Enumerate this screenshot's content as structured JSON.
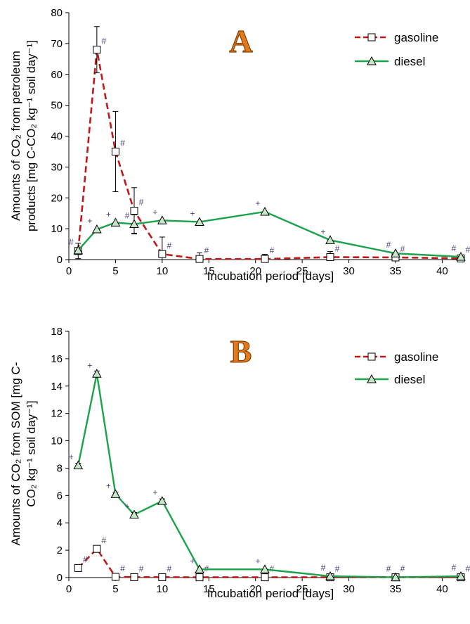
{
  "colors": {
    "gasoline": "#c01818",
    "diesel": "#1aa34a",
    "letter_fill": "#e07a1c",
    "letter_stroke": "#8a3f00",
    "marks": "#4a3f7a"
  },
  "chart_data": [
    {
      "type": "line",
      "panel": "A",
      "xlabel": "Incubation period [days]",
      "ylabel_lines": [
        "Amounts of CO₂ from petroleum",
        "products [mg C-CO₂ kg⁻¹ soil day⁻¹]"
      ],
      "xlim": [
        0,
        42
      ],
      "ylim": [
        0,
        80
      ],
      "xticks": [
        0,
        5,
        10,
        15,
        20,
        25,
        30,
        35,
        40
      ],
      "yticks": [
        0,
        10,
        20,
        30,
        40,
        50,
        60,
        70,
        80
      ],
      "legend_position": "top-right",
      "series": [
        {
          "name": "gasoline",
          "style": "dashed",
          "marker": "square",
          "points": [
            {
              "x": 1,
              "y": 2.8,
              "err": 2.5,
              "mark": ""
            },
            {
              "x": 3,
              "y": 68,
              "err": 7.5,
              "mark": "#"
            },
            {
              "x": 5,
              "y": 35,
              "err": 13,
              "mark": "#"
            },
            {
              "x": 7,
              "y": 15.8,
              "err": 7.5,
              "mark": "#"
            },
            {
              "x": 10,
              "y": 1.8,
              "err": 5.5,
              "mark": "#"
            },
            {
              "x": 14,
              "y": 0.2,
              "err": 2,
              "mark": "#"
            },
            {
              "x": 21,
              "y": 0.2,
              "err": 1.5,
              "mark": "#"
            },
            {
              "x": 28,
              "y": 0.8,
              "err": 1.8,
              "mark": "#"
            },
            {
              "x": 35,
              "y": 0.7,
              "err": 0,
              "mark": "#"
            },
            {
              "x": 42,
              "y": 0.4,
              "err": 0,
              "mark": "#"
            }
          ]
        },
        {
          "name": "diesel",
          "style": "solid",
          "marker": "triangle",
          "points": [
            {
              "x": 1,
              "y": 3,
              "err": 0,
              "mark": "#"
            },
            {
              "x": 3,
              "y": 9.8,
              "err": 0,
              "mark": "+"
            },
            {
              "x": 5,
              "y": 12,
              "err": 0,
              "mark": "+"
            },
            {
              "x": 7,
              "y": 11.5,
              "err": 3,
              "mark": "#"
            },
            {
              "x": 10,
              "y": 12.7,
              "err": 0,
              "mark": "+"
            },
            {
              "x": 14,
              "y": 12.2,
              "err": 0,
              "mark": "+"
            },
            {
              "x": 21,
              "y": 15.5,
              "err": 0,
              "mark": "+"
            },
            {
              "x": 28,
              "y": 6.3,
              "err": 0,
              "mark": "+"
            },
            {
              "x": 35,
              "y": 2,
              "err": 0,
              "mark": "#"
            },
            {
              "x": 42,
              "y": 0.9,
              "err": 0,
              "mark": "#"
            }
          ]
        }
      ]
    },
    {
      "type": "line",
      "panel": "B",
      "xlabel": "Incubation period [days]",
      "ylabel_lines": [
        "Amounts of CO₂ from SOM [mg C-",
        "CO₂ kg⁻¹ soil day⁻¹]"
      ],
      "xlim": [
        0,
        42
      ],
      "ylim": [
        0,
        18
      ],
      "xticks": [
        0,
        5,
        10,
        15,
        20,
        25,
        30,
        35,
        40
      ],
      "yticks": [
        0,
        2,
        4,
        6,
        8,
        10,
        12,
        14,
        16,
        18
      ],
      "legend_position": "top-right",
      "series": [
        {
          "name": "gasoline",
          "style": "dashed",
          "marker": "square",
          "points": [
            {
              "x": 1,
              "y": 0.7,
              "err": 0,
              "mark": "#"
            },
            {
              "x": 3,
              "y": 2.1,
              "err": 0.15,
              "mark": "#"
            },
            {
              "x": 5,
              "y": 0.05,
              "err": 0,
              "mark": "#"
            },
            {
              "x": 7,
              "y": 0.03,
              "err": 0,
              "mark": "#"
            },
            {
              "x": 10,
              "y": 0.03,
              "err": 0,
              "mark": "#"
            },
            {
              "x": 14,
              "y": 0.02,
              "err": 0,
              "mark": "#"
            },
            {
              "x": 21,
              "y": 0.02,
              "err": 0,
              "mark": "#"
            },
            {
              "x": 28,
              "y": 0.02,
              "err": 0,
              "mark": "#"
            },
            {
              "x": 35,
              "y": 0.02,
              "err": 0,
              "mark": "#"
            },
            {
              "x": 42,
              "y": 0.02,
              "err": 0,
              "mark": "#"
            }
          ]
        },
        {
          "name": "diesel",
          "style": "solid",
          "marker": "triangle",
          "points": [
            {
              "x": 1,
              "y": 8.2,
              "err": 0.15,
              "mark": "+"
            },
            {
              "x": 3,
              "y": 14.9,
              "err": 0.2,
              "mark": "+"
            },
            {
              "x": 5,
              "y": 6.1,
              "err": 0.15,
              "mark": "+"
            },
            {
              "x": 7,
              "y": 4.6,
              "err": 0.15,
              "mark": "+"
            },
            {
              "x": 10,
              "y": 5.6,
              "err": 0.15,
              "mark": "+"
            },
            {
              "x": 14,
              "y": 0.6,
              "err": 0,
              "mark": "+"
            },
            {
              "x": 21,
              "y": 0.6,
              "err": 0,
              "mark": "+"
            },
            {
              "x": 28,
              "y": 0.1,
              "err": 0,
              "mark": "#"
            },
            {
              "x": 35,
              "y": 0.02,
              "err": 0,
              "mark": "#"
            },
            {
              "x": 42,
              "y": 0.1,
              "err": 0,
              "mark": "#"
            }
          ]
        }
      ]
    }
  ]
}
